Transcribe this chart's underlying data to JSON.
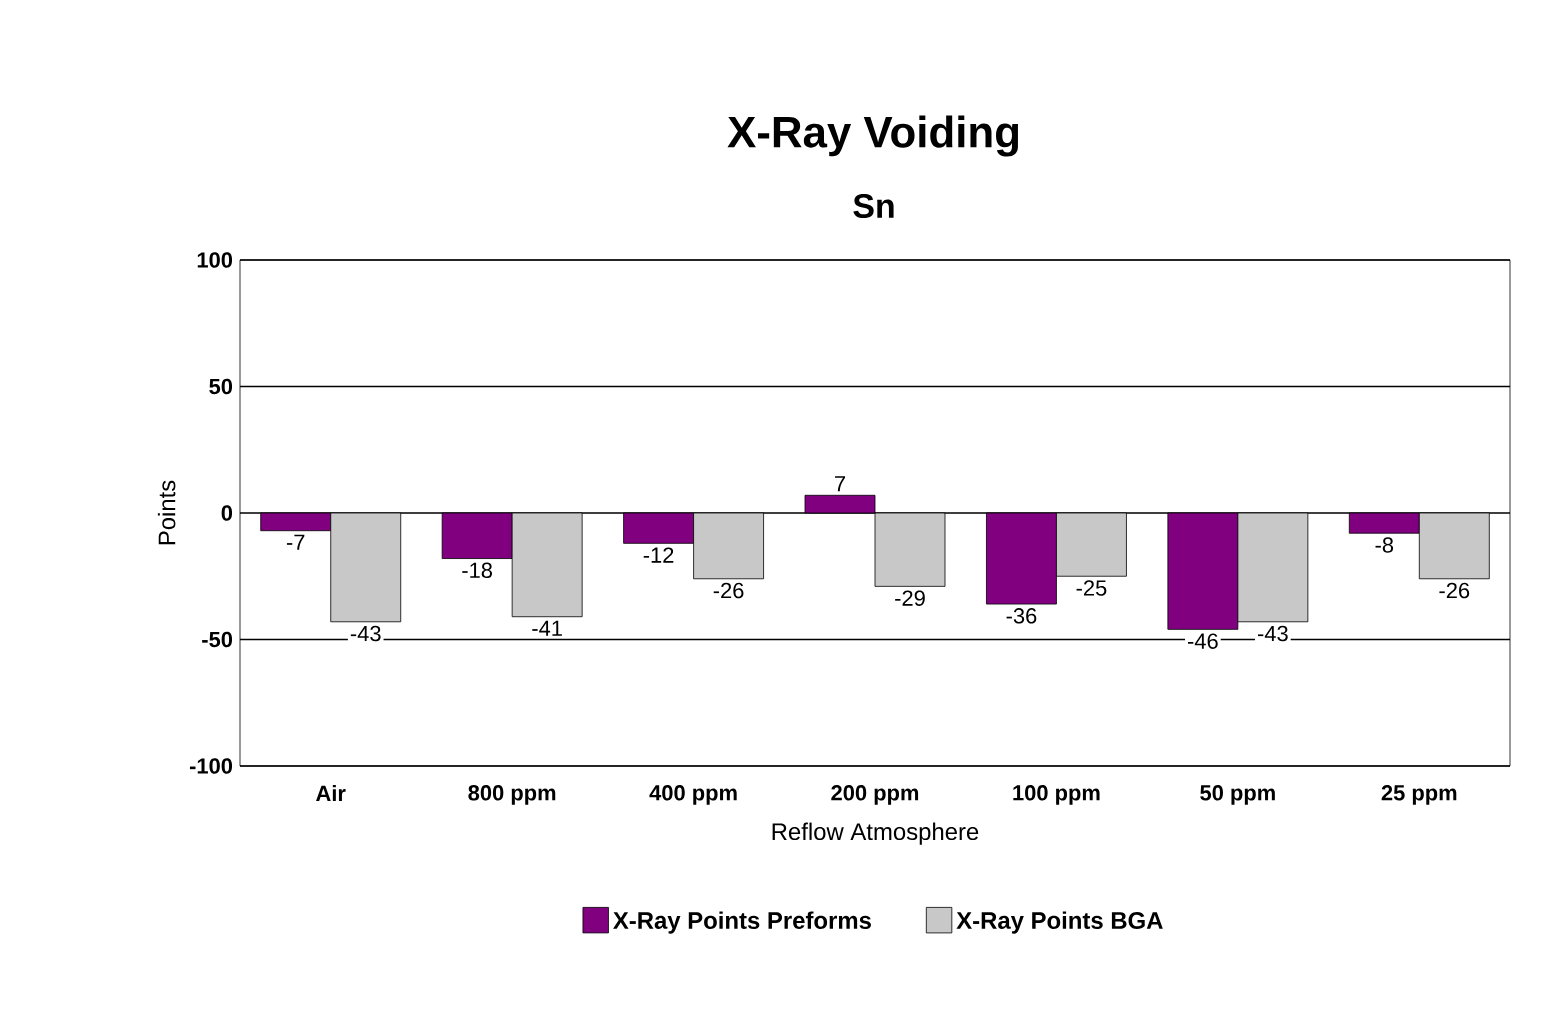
{
  "chart_data": {
    "type": "bar",
    "title": "X-Ray Voiding",
    "subtitle": "Sn",
    "xlabel": "Reflow Atmosphere",
    "ylabel": "Points",
    "categories": [
      "Air",
      "800 ppm",
      "400 ppm",
      "200 ppm",
      "100 ppm",
      "50 ppm",
      "25 ppm"
    ],
    "series": [
      {
        "name": "X-Ray Points Preforms",
        "color": "#800080",
        "values": [
          -7,
          -18,
          -12,
          7,
          -36,
          -46,
          -8
        ]
      },
      {
        "name": "X-Ray Points BGA",
        "color": "#c8c8c8",
        "values": [
          -43,
          -41,
          -26,
          -29,
          -25,
          -43,
          -26
        ]
      }
    ],
    "ylim": [
      -100,
      100
    ],
    "yticks": [
      -100,
      -50,
      0,
      50,
      100
    ],
    "grid": "y",
    "legend": "bottom",
    "data_labels": true
  }
}
